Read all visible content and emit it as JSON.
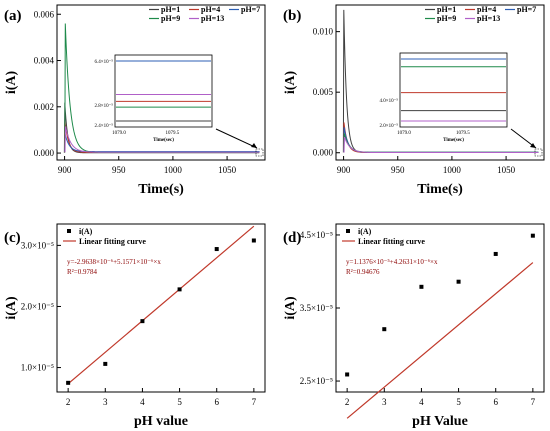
{
  "chart_data": [
    {
      "id": "a",
      "panel_label": "(a)",
      "type": "line",
      "xlabel": "Time(s)",
      "ylabel": "i(A)",
      "xlim": [
        893,
        1085
      ],
      "ylim": [
        -0.0003,
        0.0064
      ],
      "xticks": [
        "900",
        "950",
        "1000",
        "1050"
      ],
      "yticks": [
        "0.000",
        "0.002",
        "0.004",
        "0.006"
      ],
      "series": [
        {
          "name": "pH=1",
          "color": "#404040",
          "peak": 0.00218,
          "baseline": 1.2e-05
        },
        {
          "name": "pH=4",
          "color": "#c0392b",
          "peak": 0.00138,
          "baseline": 2.9e-05
        },
        {
          "name": "pH=7",
          "color": "#2c5fb5",
          "peak": 0.00082,
          "baseline": 6.4e-05
        },
        {
          "name": "pH=9",
          "color": "#1e8a4a",
          "peak": 0.0056,
          "baseline": 2.4e-05
        },
        {
          "name": "pH=13",
          "color": "#b060c8",
          "peak": 0.00115,
          "baseline": 3.5e-05
        }
      ],
      "inset": {
        "xlabel": "Time(sec)",
        "xticks": [
          "1079.0",
          "1079.5"
        ],
        "yticks": [
          "2.4×10⁻⁵",
          "2.8×10⁻⁵",
          "6.4×10⁻⁵"
        ]
      }
    },
    {
      "id": "b",
      "panel_label": "(b)",
      "type": "line",
      "xlabel": "Time(s)",
      "ylabel": "i(A)",
      "xlim": [
        893,
        1085
      ],
      "ylim": [
        -0.0006,
        0.0122
      ],
      "xticks": [
        "900",
        "950",
        "1000",
        "1050"
      ],
      "yticks": [
        "0.000",
        "0.005",
        "0.010"
      ],
      "series": [
        {
          "name": "pH=1",
          "color": "#404040",
          "peak": 0.0118,
          "baseline": 1.8e-05
        },
        {
          "name": "pH=4",
          "color": "#c0392b",
          "peak": 0.0025,
          "baseline": 2.5e-05
        },
        {
          "name": "pH=7",
          "color": "#2c5fb5",
          "peak": 0.0021,
          "baseline": 3.8e-05
        },
        {
          "name": "pH=9",
          "color": "#1e8a4a",
          "peak": 0.0016,
          "baseline": 3.5e-05
        },
        {
          "name": "pH=13",
          "color": "#b060c8",
          "peak": 0.0013,
          "baseline": 1.4e-05
        }
      ],
      "inset": {
        "xlabel": "Time(sec)",
        "xticks": [
          "1079.0",
          "1079.5"
        ],
        "yticks": [
          "2.0×10⁻⁵",
          "4.0×10⁻⁵"
        ]
      }
    },
    {
      "id": "c",
      "panel_label": "(c)",
      "type": "scatter",
      "xlabel": "pH value",
      "ylabel": "i(A)",
      "xlim": [
        1.7,
        7.3
      ],
      "ylim": [
        6e-06,
        3.35e-05
      ],
      "xticks": [
        "2",
        "3",
        "4",
        "5",
        "6",
        "7"
      ],
      "yticks": [
        "1.0×10⁻⁵",
        "2.0×10⁻⁵",
        "3.0×10⁻⁵"
      ],
      "x": [
        2,
        3,
        4,
        5,
        6,
        7
      ],
      "y": [
        7.5e-06,
        1.06e-05,
        1.76e-05,
        2.28e-05,
        2.94e-05,
        3.08e-05
      ],
      "fit": {
        "intercept": -2.9638e-06,
        "slope": 5.1571e-06
      },
      "legend": [
        "i(A)",
        "Linear fitting curve"
      ],
      "equation": "y=-2.9638×10⁻⁶+5.1571×10⁻⁶×x",
      "r2": "R²=0.9784"
    },
    {
      "id": "d",
      "panel_label": "(d)",
      "type": "scatter",
      "xlabel": "pH Value",
      "ylabel": "i(A)",
      "xlim": [
        1.7,
        7.3
      ],
      "ylim": [
        2.35e-05,
        4.65e-05
      ],
      "xticks": [
        "2",
        "3",
        "4",
        "5",
        "6",
        "7"
      ],
      "yticks": [
        "2.5×10⁻⁵",
        "3.5×10⁻⁵",
        "4.5×10⁻⁵"
      ],
      "x": [
        2,
        3,
        4,
        5,
        6,
        7
      ],
      "y": [
        2.59e-05,
        3.21e-05,
        3.79e-05,
        3.86e-05,
        4.24e-05,
        4.49e-05
      ],
      "fit": {
        "intercept": 1.1376e-05,
        "slope": 4.2631e-06
      },
      "legend": [
        "i(A)",
        "Linear fitting curve"
      ],
      "equation": "y=1.1376×10⁻⁵+4.2631×10⁻⁶×x",
      "r2": "R²=0.94676"
    }
  ]
}
